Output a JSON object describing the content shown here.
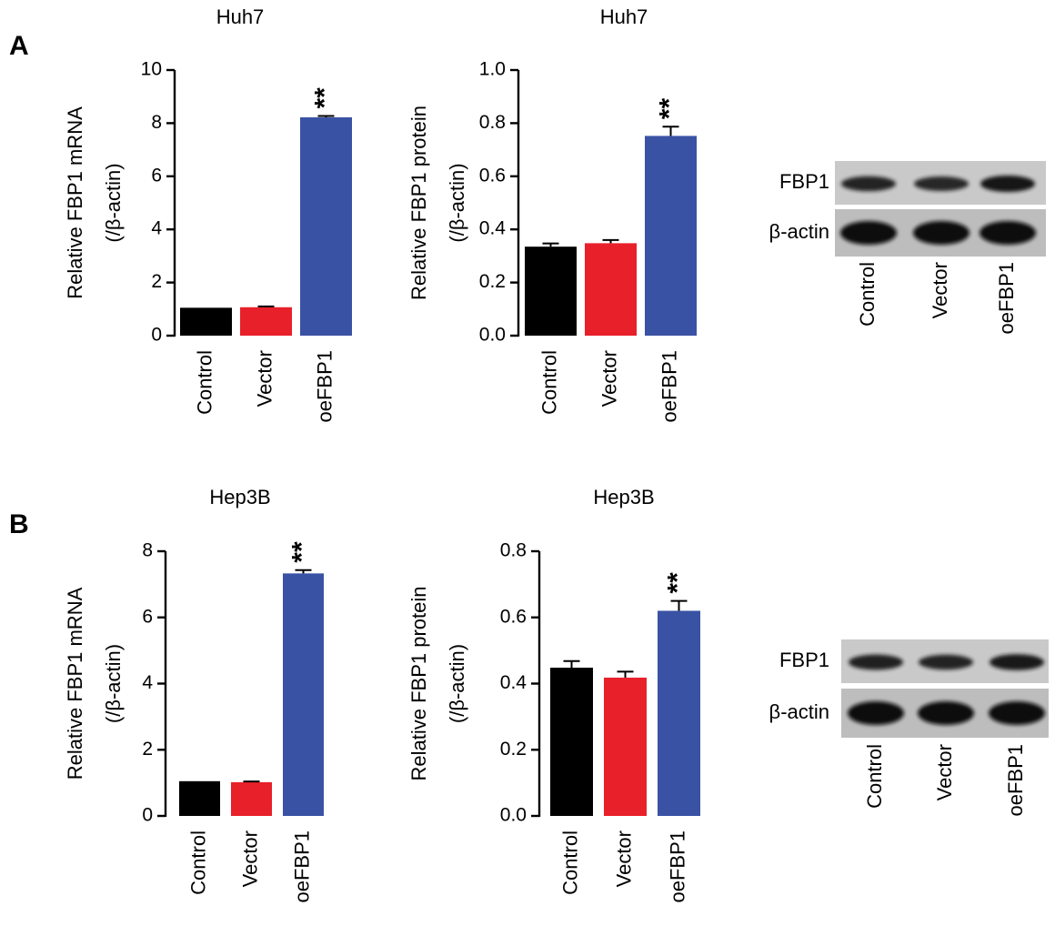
{
  "panels": [
    {
      "letter": "A"
    },
    {
      "letter": "B"
    }
  ],
  "chart_data": [
    {
      "type": "bar",
      "title": "Huh7",
      "ylabel_line1": "Relative FBP1 mRNA",
      "ylabel_line2": "(/β-actin)",
      "categories": [
        "Control",
        "Vector",
        "oeFBP1"
      ],
      "values": [
        1.05,
        1.07,
        8.22
      ],
      "errors": [
        0.0,
        0.03,
        0.05
      ],
      "ylim": [
        0,
        10
      ],
      "yticks": [
        "0",
        "2",
        "4",
        "6",
        "8",
        "10"
      ],
      "ytick_values": [
        0,
        2,
        4,
        6,
        8,
        10
      ],
      "annotation": "**",
      "annotation_index": 2,
      "colors": [
        "#000000",
        "#e8202a",
        "#3a52a4"
      ]
    },
    {
      "type": "bar",
      "title": "Huh7",
      "ylabel_line1": "Relative FBP1 protein",
      "ylabel_line2": "(/β-actin)",
      "categories": [
        "Control",
        "Vector",
        "oeFBP1"
      ],
      "values": [
        0.335,
        0.348,
        0.752
      ],
      "errors": [
        0.012,
        0.012,
        0.035
      ],
      "ylim": [
        0,
        1.0
      ],
      "yticks": [
        "0.0",
        "0.2",
        "0.4",
        "0.6",
        "0.8",
        "1.0"
      ],
      "ytick_values": [
        0,
        0.2,
        0.4,
        0.6,
        0.8,
        1.0
      ],
      "annotation": "**",
      "annotation_index": 2,
      "colors": [
        "#000000",
        "#e8202a",
        "#3a52a4"
      ]
    },
    {
      "type": "bar",
      "title": "Hep3B",
      "ylabel_line1": "Relative FBP1 mRNA",
      "ylabel_line2": "(/β-actin)",
      "categories": [
        "Control",
        "Vector",
        "oeFBP1"
      ],
      "values": [
        1.05,
        1.02,
        7.33
      ],
      "errors": [
        0.0,
        0.02,
        0.1
      ],
      "ylim": [
        0,
        8
      ],
      "yticks": [
        "0",
        "2",
        "4",
        "6",
        "8"
      ],
      "ytick_values": [
        0,
        2,
        4,
        6,
        8
      ],
      "annotation": "**",
      "annotation_index": 2,
      "colors": [
        "#000000",
        "#e8202a",
        "#3a52a4"
      ]
    },
    {
      "type": "bar",
      "title": "Hep3B",
      "ylabel_line1": "Relative FBP1 protein",
      "ylabel_line2": "(/β-actin)",
      "categories": [
        "Control",
        "Vector",
        "oeFBP1"
      ],
      "values": [
        0.448,
        0.418,
        0.62
      ],
      "errors": [
        0.02,
        0.018,
        0.03
      ],
      "ylim": [
        0,
        0.8
      ],
      "yticks": [
        "0.0",
        "0.2",
        "0.4",
        "0.6",
        "0.8"
      ],
      "ytick_values": [
        0,
        0.2,
        0.4,
        0.6,
        0.8
      ],
      "annotation": "**",
      "annotation_index": 2,
      "colors": [
        "#000000",
        "#e8202a",
        "#3a52a4"
      ]
    }
  ],
  "blots": [
    {
      "row_labels": [
        "FBP1",
        "β-actin"
      ],
      "lane_labels": [
        "Control",
        "Vector",
        "oeFBP1"
      ],
      "fbp1_intensity": [
        0.8,
        0.75,
        1.0
      ]
    },
    {
      "row_labels": [
        "FBP1",
        "β-actin"
      ],
      "lane_labels": [
        "Control",
        "Vector",
        "oeFBP1"
      ],
      "fbp1_intensity": [
        0.85,
        0.8,
        0.95
      ]
    }
  ]
}
